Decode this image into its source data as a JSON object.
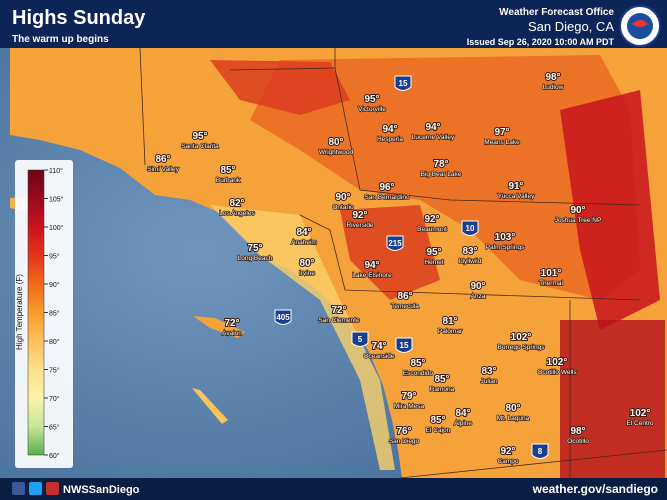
{
  "header": {
    "title": "Highs Sunday",
    "subtitle": "The warm up begins",
    "office": "Weather Forecast Office",
    "location": "San Diego, CA",
    "issued": "Issued Sep 26, 2020 10:00 AM PDT"
  },
  "legend": {
    "title": "High Temperature (F)",
    "ticks": [
      "110°",
      "105°",
      "100°",
      "95°",
      "90°",
      "85°",
      "80°",
      "75°",
      "70°",
      "65°",
      "60°"
    ]
  },
  "highways": [
    "15",
    "215",
    "10",
    "405",
    "5",
    "15",
    "8"
  ],
  "cities": [
    {
      "name": "Ludlow",
      "temp": "98°"
    },
    {
      "name": "Victorville",
      "temp": "95°"
    },
    {
      "name": "Hesperia",
      "temp": "94°"
    },
    {
      "name": "Lucerne Valley",
      "temp": "94°"
    },
    {
      "name": "Means Lake",
      "temp": "97°"
    },
    {
      "name": "Santa Clarita",
      "temp": "95°"
    },
    {
      "name": "Wrightwood",
      "temp": "80°"
    },
    {
      "name": "Simi Valley",
      "temp": "86°"
    },
    {
      "name": "Big Bear Lake",
      "temp": "78°"
    },
    {
      "name": "Burbank",
      "temp": "85°"
    },
    {
      "name": "Yucca Valley",
      "temp": "91°"
    },
    {
      "name": "Ontario",
      "temp": "90°"
    },
    {
      "name": "San Bernardino",
      "temp": "96°"
    },
    {
      "name": "Los Angeles",
      "temp": "82°"
    },
    {
      "name": "Joshua Tree NP",
      "temp": "90°"
    },
    {
      "name": "Riverside",
      "temp": "92°"
    },
    {
      "name": "Beaumont",
      "temp": "92°"
    },
    {
      "name": "Anaheim",
      "temp": "84°"
    },
    {
      "name": "Palm Springs",
      "temp": "103°"
    },
    {
      "name": "Long Beach",
      "temp": "75°"
    },
    {
      "name": "Irvine",
      "temp": "80°"
    },
    {
      "name": "Hemet",
      "temp": "95°"
    },
    {
      "name": "Idyllwild",
      "temp": "83°"
    },
    {
      "name": "Lake Elsinore",
      "temp": "94°"
    },
    {
      "name": "Thermal",
      "temp": "101°"
    },
    {
      "name": "Anza",
      "temp": "90°"
    },
    {
      "name": "Temecula",
      "temp": "86°"
    },
    {
      "name": "San Clemente",
      "temp": "72°"
    },
    {
      "name": "Avalon",
      "temp": "72°"
    },
    {
      "name": "Palomar",
      "temp": "81°"
    },
    {
      "name": "Borrego Springs",
      "temp": "102°"
    },
    {
      "name": "Oceanside",
      "temp": "74°"
    },
    {
      "name": "Ocotillo Wells",
      "temp": "102°"
    },
    {
      "name": "Escondido",
      "temp": "85°"
    },
    {
      "name": "Ramona",
      "temp": "85°"
    },
    {
      "name": "Julian",
      "temp": "83°"
    },
    {
      "name": "Mira Mesa",
      "temp": "79°"
    },
    {
      "name": "El Cajon",
      "temp": "85°"
    },
    {
      "name": "Alpine",
      "temp": "84°"
    },
    {
      "name": "Mt. Laguna",
      "temp": "80°"
    },
    {
      "name": "El Centro",
      "temp": "102°"
    },
    {
      "name": "San Diego",
      "temp": "76°"
    },
    {
      "name": "Ocotillo",
      "temp": "98°"
    },
    {
      "name": "Campo",
      "temp": "92°"
    }
  ],
  "footer": {
    "handle": "NWSSanDiego",
    "url": "weather.gov/sandiego"
  }
}
